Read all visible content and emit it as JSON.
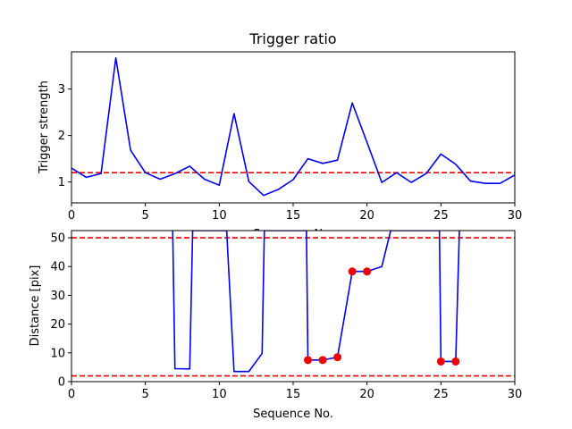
{
  "chart_data": [
    {
      "type": "line",
      "title": "Trigger ratio",
      "xlabel": "Sequence No.",
      "ylabel": "Trigger strength",
      "xlim": [
        0,
        30
      ],
      "ylim": [
        0.55,
        3.8
      ],
      "xticks": [
        0,
        5,
        10,
        15,
        20,
        25,
        30
      ],
      "yticks": [
        1,
        2,
        3
      ],
      "grid": false,
      "series": [
        {
          "color": "#0000ee",
          "style": "solid",
          "x": [
            0,
            1,
            2,
            3,
            4,
            5,
            6,
            7,
            8,
            9,
            10,
            11,
            12,
            13,
            14,
            15,
            16,
            17,
            18,
            19,
            20,
            21,
            22,
            23,
            24,
            25,
            26,
            27,
            28,
            29,
            30
          ],
          "y": [
            1.3,
            1.1,
            1.18,
            3.67,
            1.68,
            1.2,
            1.06,
            1.18,
            1.34,
            1.06,
            0.93,
            2.47,
            1.01,
            0.71,
            0.84,
            1.05,
            1.5,
            1.4,
            1.47,
            2.7,
            1.85,
            0.99,
            1.2,
            0.99,
            1.18,
            1.6,
            1.38,
            1.02,
            0.97,
            0.97,
            1.15
          ]
        }
      ],
      "hlines": [
        {
          "y": 1.2,
          "color": "#ee0000",
          "style": "dashed"
        }
      ]
    },
    {
      "type": "line",
      "title": "",
      "xlabel": "Sequence No.",
      "ylabel": "Distance [pix]",
      "xlim": [
        0,
        30
      ],
      "ylim": [
        0,
        52.5
      ],
      "xticks": [
        0,
        5,
        10,
        15,
        20,
        25,
        30
      ],
      "yticks": [
        0,
        10,
        20,
        30,
        40,
        50
      ],
      "grid": false,
      "series": [
        {
          "color": "#0000ee",
          "style": "solid",
          "x": [
            6.85,
            7,
            8,
            8.2,
            10.5,
            11,
            12,
            12.9,
            13.05,
            15.9,
            16,
            17,
            18,
            19,
            20,
            21,
            21.6,
            24.9,
            25,
            26,
            26.25
          ],
          "y": [
            52.5,
            4.5,
            4.4,
            52.5,
            52.5,
            3.5,
            3.5,
            9.8,
            52.5,
            52.5,
            7.5,
            7.5,
            8.5,
            38.3,
            38.3,
            40,
            52.5,
            52.5,
            7,
            7,
            52.5
          ]
        }
      ],
      "points": {
        "color": "#ee0000",
        "x": [
          16,
          17,
          18,
          19,
          20,
          25,
          26
        ],
        "y": [
          7.5,
          7.5,
          8.5,
          38.3,
          38.3,
          7,
          7
        ]
      },
      "hlines": [
        {
          "y": 50,
          "color": "#ee0000",
          "style": "dashed"
        },
        {
          "y": 2,
          "color": "#ee0000",
          "style": "dashed"
        }
      ]
    }
  ]
}
